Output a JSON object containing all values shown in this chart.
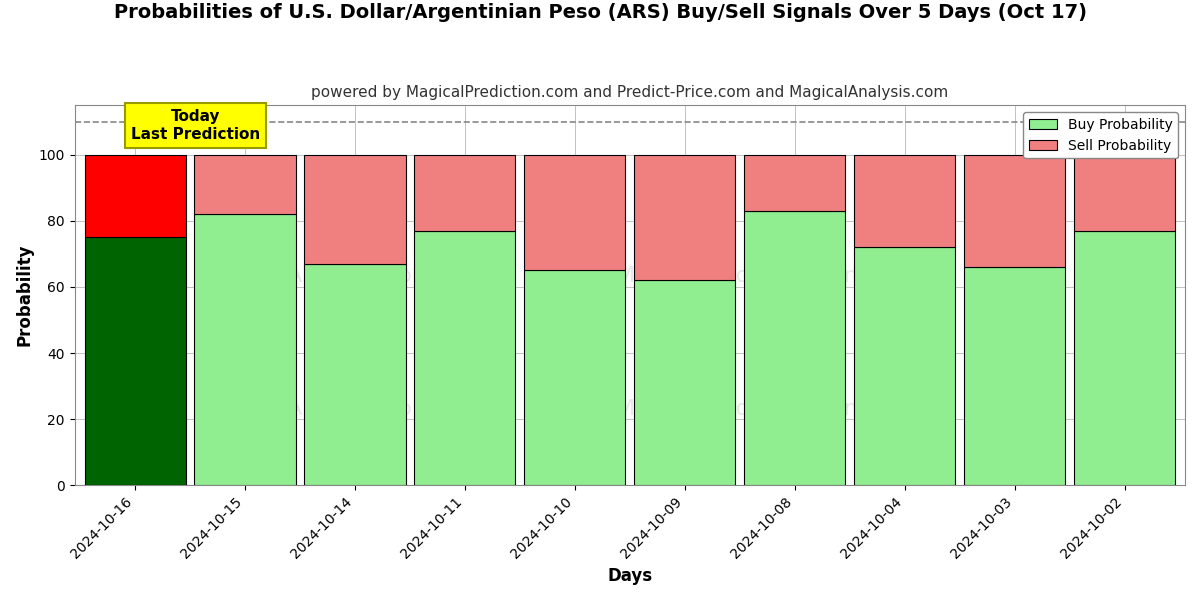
{
  "title": "Probabilities of U.S. Dollar/Argentinian Peso (ARS) Buy/Sell Signals Over 5 Days (Oct 17)",
  "subtitle": "powered by MagicalPrediction.com and Predict-Price.com and MagicalAnalysis.com",
  "xlabel": "Days",
  "ylabel": "Probability",
  "categories": [
    "2024-10-16",
    "2024-10-15",
    "2024-10-14",
    "2024-10-11",
    "2024-10-10",
    "2024-10-09",
    "2024-10-08",
    "2024-10-04",
    "2024-10-03",
    "2024-10-02"
  ],
  "buy_values": [
    75,
    82,
    67,
    77,
    65,
    62,
    83,
    72,
    66,
    77
  ],
  "sell_values": [
    25,
    18,
    33,
    23,
    35,
    38,
    17,
    28,
    34,
    23
  ],
  "today_buy_color": "#006400",
  "today_sell_color": "#FF0000",
  "buy_color": "#90EE90",
  "sell_color": "#F08080",
  "bar_edge_color": "#000000",
  "ylim": [
    0,
    115
  ],
  "yticks": [
    0,
    20,
    40,
    60,
    80,
    100
  ],
  "dashed_line_y": 110,
  "legend_buy_label": "Buy Probability",
  "legend_sell_label": "Sell Probability",
  "today_label_line1": "Today",
  "today_label_line2": "Last Prediction",
  "background_color": "#ffffff",
  "grid_color": "#aaaaaa",
  "title_fontsize": 14,
  "subtitle_fontsize": 11,
  "axis_label_fontsize": 12,
  "tick_fontsize": 10,
  "bar_width": 0.92,
  "figsize": [
    12,
    6
  ]
}
